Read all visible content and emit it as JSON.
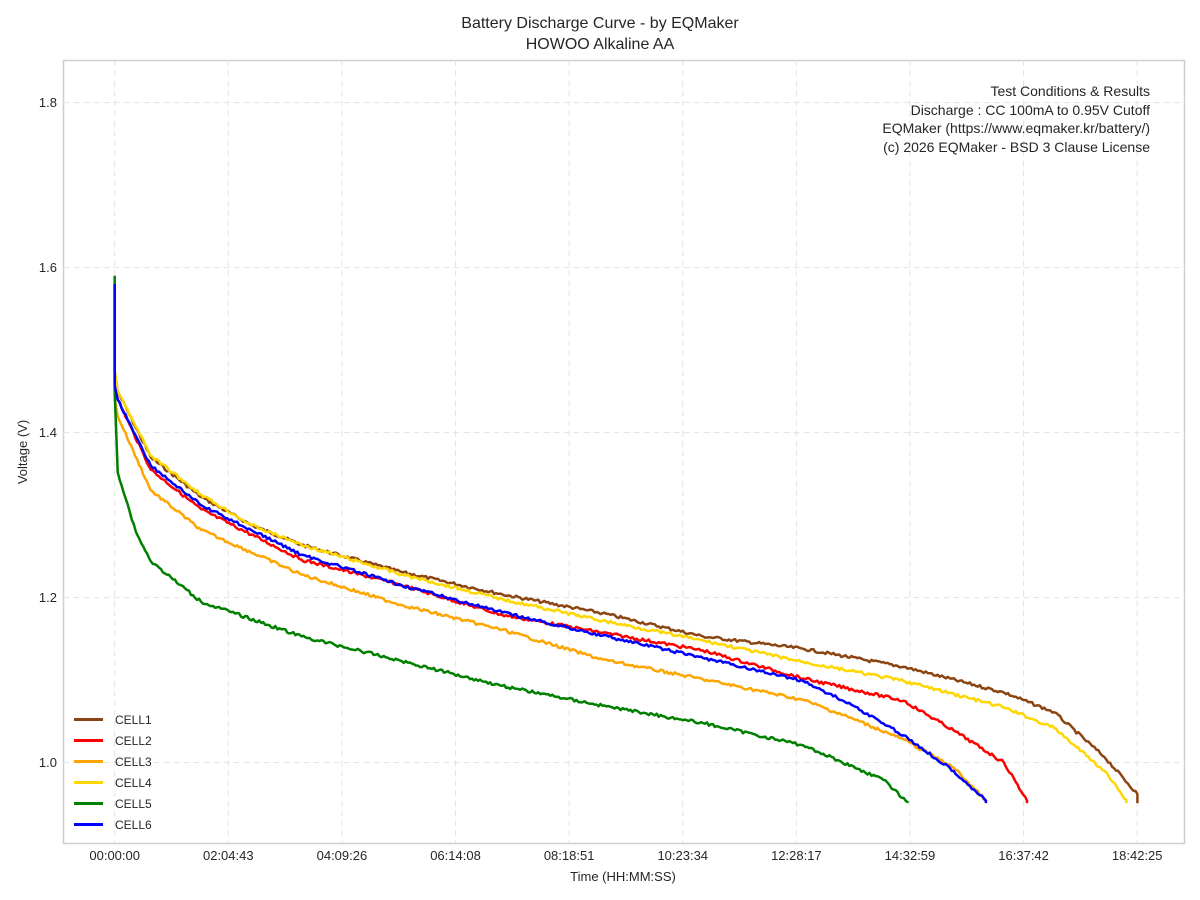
{
  "chart_data": {
    "type": "line",
    "title": "Battery Discharge Curve - by EQMaker",
    "subtitle": "HOWOO Alkaline AA",
    "xlabel": "Time (HH:MM:SS)",
    "ylabel": "Voltage (V)",
    "xunit": "seconds",
    "xlim": [
      -3371,
      70460
    ],
    "ylim": [
      0.902,
      1.851
    ],
    "xticks": [
      0,
      7483,
      14966,
      22448,
      29931,
      37414,
      44897,
      52379,
      59862,
      67345
    ],
    "xtick_labels": [
      "00:00:00",
      "02:04:43",
      "04:09:26",
      "06:14:08",
      "08:18:51",
      "10:23:34",
      "12:28:17",
      "14:32:59",
      "16:37:42",
      "18:42:25"
    ],
    "yticks": [
      1.0,
      1.2,
      1.4,
      1.6,
      1.8
    ],
    "ytick_labels": [
      "1.0",
      "1.2",
      "1.4",
      "1.6",
      "1.8"
    ],
    "grid": true,
    "legend_position": "lower-left",
    "annotation": {
      "lines": [
        "Test Conditions & Results",
        "Discharge : CC 100mA to 0.95V Cutoff",
        "EQMaker (https://www.eqmaker.kr/battery/)",
        "(c) 2026 EQMaker - BSD 3 Clause License"
      ]
    },
    "series": [
      {
        "name": "CELL1",
        "color": "#8B4513",
        "x": [
          0,
          0,
          200,
          2380,
          5690,
          8990,
          12300,
          18910,
          25520,
          32130,
          38740,
          45350,
          51960,
          58570,
          61880,
          65180,
          67360
        ],
        "y": [
          1.58,
          1.475,
          1.45,
          1.37,
          1.322,
          1.288,
          1.264,
          1.231,
          1.204,
          1.181,
          1.153,
          1.138,
          1.116,
          1.085,
          1.061,
          1.007,
          0.962
        ]
      },
      {
        "name": "CELL2",
        "color": "#FF0000",
        "x": [
          0,
          0,
          200,
          2380,
          5690,
          12300,
          18910,
          25520,
          38740,
          45350,
          51960,
          55260,
          58570,
          60090
        ],
        "y": [
          1.58,
          1.463,
          1.44,
          1.355,
          1.307,
          1.246,
          1.215,
          1.179,
          1.136,
          1.102,
          1.075,
          1.039,
          1.0,
          0.954
        ]
      },
      {
        "name": "CELL3",
        "color": "#FFA500",
        "x": [
          0,
          0,
          200,
          2380,
          5690,
          12300,
          18910,
          25520,
          32130,
          38740,
          45350,
          48650,
          51960,
          55260,
          57380
        ],
        "y": [
          1.58,
          1.44,
          1.42,
          1.33,
          1.282,
          1.228,
          1.191,
          1.161,
          1.125,
          1.101,
          1.076,
          1.053,
          1.028,
          0.994,
          0.954
        ]
      },
      {
        "name": "CELL4",
        "color": "#FFD700",
        "x": [
          0,
          0,
          200,
          2380,
          5690,
          8990,
          12300,
          18910,
          25520,
          32130,
          38740,
          45350,
          51960,
          58570,
          61880,
          65180,
          66630
        ],
        "y": [
          1.58,
          1.475,
          1.45,
          1.372,
          1.325,
          1.288,
          1.264,
          1.228,
          1.198,
          1.172,
          1.148,
          1.122,
          1.099,
          1.067,
          1.042,
          0.99,
          0.955
        ]
      },
      {
        "name": "CELL5",
        "color": "#008000",
        "x": [
          0,
          0,
          200,
          1390,
          2380,
          5690,
          12300,
          18910,
          25520,
          32130,
          38740,
          45350,
          50640,
          52220
        ],
        "y": [
          1.59,
          1.45,
          1.352,
          1.28,
          1.244,
          1.195,
          1.153,
          1.123,
          1.093,
          1.069,
          1.048,
          1.021,
          0.979,
          0.952
        ]
      },
      {
        "name": "CELL6",
        "color": "#0000FF",
        "x": [
          0,
          0,
          200,
          2380,
          5690,
          12300,
          18910,
          25520,
          32130,
          38740,
          45350,
          48650,
          51960,
          55260,
          57380
        ],
        "y": [
          1.58,
          1.457,
          1.44,
          1.36,
          1.312,
          1.252,
          1.215,
          1.182,
          1.154,
          1.127,
          1.099,
          1.069,
          1.033,
          0.99,
          0.954
        ]
      }
    ]
  }
}
